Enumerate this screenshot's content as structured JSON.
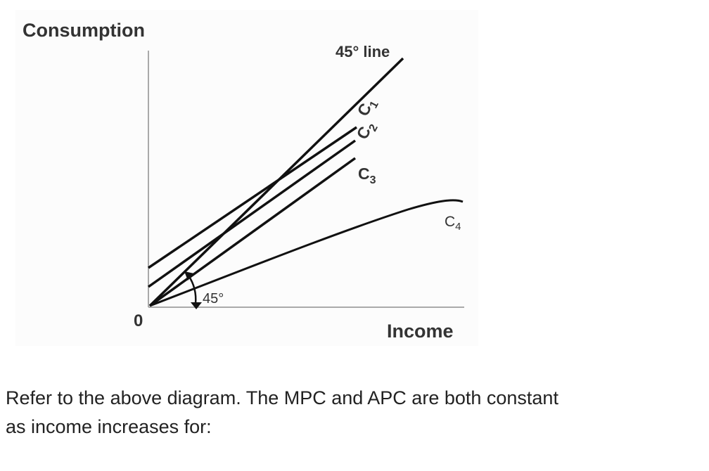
{
  "chart_data": {
    "type": "line",
    "xlabel": "Income",
    "ylabel": "Consumption",
    "origin_label": "0",
    "reference_line": {
      "label": "45° line",
      "angle_label": "45°"
    },
    "series": [
      {
        "name": "C1",
        "label_main": "C",
        "label_sub": "1"
      },
      {
        "name": "C2",
        "label_main": "C",
        "label_sub": "2"
      },
      {
        "name": "C3",
        "label_main": "C",
        "label_sub": "3"
      },
      {
        "name": "C4",
        "label_main": "C",
        "label_sub": "4"
      }
    ],
    "axis_color": "#aaaaaa",
    "line_color": "#111111"
  },
  "question": {
    "line1": "Refer to the above diagram. The MPC and APC are both constant",
    "line2": "as income increases for:"
  }
}
